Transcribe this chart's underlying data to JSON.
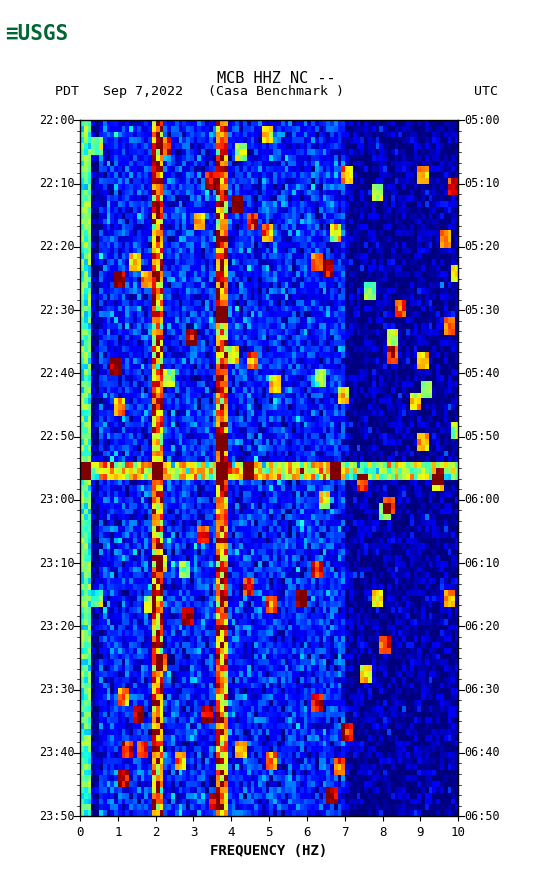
{
  "title_line1": "MCB HHZ NC --",
  "title_line2": "(Casa Benchmark )",
  "date_label": "PDT   Sep 7,2022",
  "utc_label": "UTC",
  "left_times": [
    "22:00",
    "22:10",
    "22:20",
    "22:30",
    "22:40",
    "22:50",
    "23:00",
    "23:10",
    "23:20",
    "23:30",
    "23:40",
    "23:50"
  ],
  "right_times": [
    "05:00",
    "05:10",
    "05:20",
    "05:30",
    "05:40",
    "05:50",
    "06:00",
    "06:10",
    "06:20",
    "06:30",
    "06:40",
    "06:50"
  ],
  "freq_min": 0,
  "freq_max": 10,
  "freq_ticks": [
    0,
    1,
    2,
    3,
    4,
    5,
    6,
    7,
    8,
    9,
    10
  ],
  "xlabel": "FREQUENCY (HZ)",
  "background_color": "#ffffff",
  "plot_bg": "#000080",
  "n_freq_bins": 100,
  "n_time_bins": 120,
  "seed": 42,
  "logo_color": "#006633"
}
